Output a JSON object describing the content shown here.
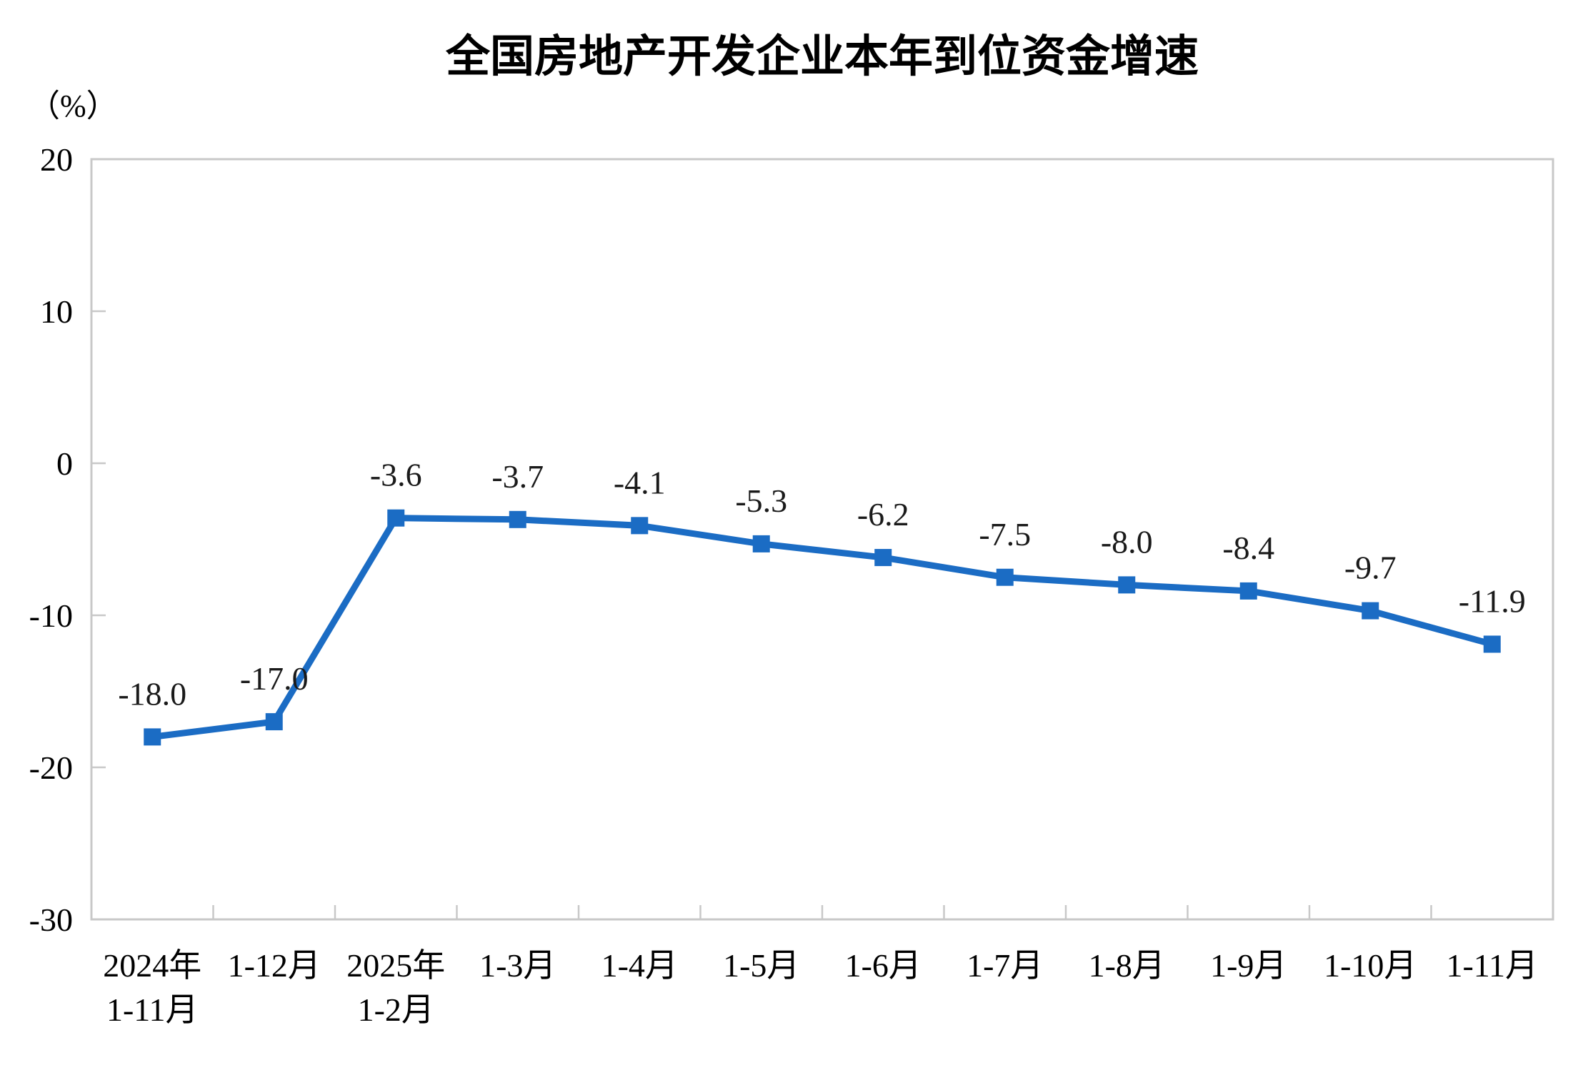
{
  "chart_data": {
    "type": "line",
    "title": "全国房地产开发企业本年到位资金增速",
    "ylabel": "（%）",
    "xlabel": "",
    "legend": "none",
    "grid": false,
    "categories": [
      [
        "2024年",
        "1-11月"
      ],
      [
        "1-12月"
      ],
      [
        "2025年",
        "1-2月"
      ],
      [
        "1-3月"
      ],
      [
        "1-4月"
      ],
      [
        "1-5月"
      ],
      [
        "1-6月"
      ],
      [
        "1-7月"
      ],
      [
        "1-8月"
      ],
      [
        "1-9月"
      ],
      [
        "1-10月"
      ],
      [
        "1-11月"
      ]
    ],
    "values": [
      -18.0,
      -17.0,
      -3.6,
      -3.7,
      -4.1,
      -5.3,
      -6.2,
      -7.5,
      -8.0,
      -8.4,
      -9.7,
      -11.9
    ],
    "data_labels": [
      "-18.0",
      "-17.0",
      "-3.6",
      "-3.7",
      "-4.1",
      "-5.3",
      "-6.2",
      "-7.5",
      "-8.0",
      "-8.4",
      "-9.7",
      "-11.9"
    ],
    "ylim": [
      -30,
      20
    ],
    "yticks": [
      20,
      10,
      0,
      -10,
      -20,
      -30
    ],
    "ytick_labels": [
      "20",
      "10",
      "0",
      "-10",
      "-20",
      "-30"
    ],
    "marker_shape": "square",
    "colors": {
      "line": "#1B6CC4",
      "marker": "#1B6CC4",
      "axis": "#C8C8C8",
      "text": "#000000",
      "background": "#FFFFFF"
    }
  }
}
